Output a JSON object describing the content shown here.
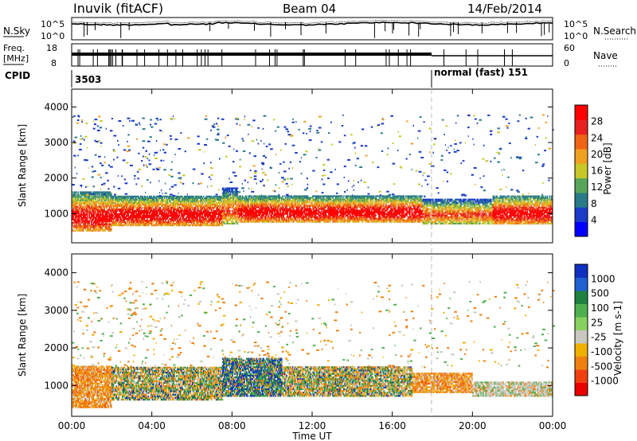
{
  "header": {
    "station": "Inuvik (fitACF)",
    "beam": "Beam 04",
    "date": "14/Feb/2014"
  },
  "top_panels": {
    "nsky_label": "N.Sky",
    "nsky_top": "10^5",
    "nsky_bottom": "10^0",
    "nsearch_label": "N.Search",
    "nsearch_top": "10^5",
    "nsearch_bottom": "10^0",
    "freq_label_1": "Freq.",
    "freq_label_2": "[MHz]",
    "freq_top": "18",
    "freq_bottom": "8",
    "nave_label": "Nave",
    "nave_top": "60",
    "nave_bottom": "0",
    "cpid_label": "CPID",
    "cpid_value_1": "3503",
    "cpid_value_2": "normal (fast) 151"
  },
  "chart_data": [
    {
      "type": "heatmap",
      "title": "Power",
      "ylabel": "Slant Range [km]",
      "xlabel": "",
      "xlim": [
        "00:00",
        "00:00"
      ],
      "ylim": [
        180,
        4500
      ],
      "y_ticks": [
        1000,
        2000,
        3000,
        4000
      ],
      "colorbar": {
        "label": "Power [dB]",
        "ticks": [
          "4",
          "8",
          "12",
          "16",
          "20",
          "24",
          "28"
        ],
        "colors": [
          "#0000ff",
          "#1a3cc8",
          "#2a7a8a",
          "#58a55a",
          "#c8c828",
          "#f0a020",
          "#f06414",
          "#e82020",
          "#ff0000"
        ]
      },
      "bands": [
        {
          "start_h": 0.0,
          "end_h": 2.0,
          "low_km": 500,
          "high_km": 1600,
          "level": "high"
        },
        {
          "start_h": 2.0,
          "end_h": 7.5,
          "low_km": 650,
          "high_km": 1500,
          "level": "high"
        },
        {
          "start_h": 7.5,
          "end_h": 8.3,
          "low_km": 700,
          "high_km": 1700,
          "level": "mid"
        },
        {
          "start_h": 8.3,
          "end_h": 17.5,
          "low_km": 750,
          "high_km": 1500,
          "level": "high"
        },
        {
          "start_h": 17.5,
          "end_h": 21.0,
          "low_km": 700,
          "high_km": 1400,
          "level": "mid"
        },
        {
          "start_h": 21.0,
          "end_h": 24.0,
          "low_km": 700,
          "high_km": 1500,
          "level": "high"
        }
      ]
    },
    {
      "type": "heatmap",
      "title": "Velocity",
      "ylabel": "Slant Range [km]",
      "xlabel": "Time UT",
      "x_ticks": [
        "00:00",
        "04:00",
        "08:00",
        "12:00",
        "16:00",
        "20:00",
        "00:00"
      ],
      "ylim": [
        180,
        4500
      ],
      "y_ticks": [
        1000,
        2000,
        3000,
        4000
      ],
      "colorbar": {
        "label": "Velocity [m s-1]",
        "ticks": [
          "1000",
          "500",
          "100",
          "25",
          "-25",
          "-100",
          "-500",
          "-1000"
        ],
        "colors": [
          "#1030c0",
          "#2060d0",
          "#208040",
          "#50b050",
          "#88d060",
          "#c8c8c0",
          "#f0b000",
          "#f08010",
          "#f04010",
          "#e80000"
        ]
      },
      "bands": [
        {
          "start_h": 0.0,
          "end_h": 2.0,
          "low_km": 400,
          "high_km": 1500,
          "level": "negative"
        },
        {
          "start_h": 2.0,
          "end_h": 7.5,
          "low_km": 600,
          "high_km": 1500,
          "level": "mixed"
        },
        {
          "start_h": 7.5,
          "end_h": 10.5,
          "low_km": 700,
          "high_km": 1700,
          "level": "positive"
        },
        {
          "start_h": 10.5,
          "end_h": 17.0,
          "low_km": 700,
          "high_km": 1500,
          "level": "mixed"
        },
        {
          "start_h": 17.0,
          "end_h": 20.0,
          "low_km": 800,
          "high_km": 1300,
          "level": "negative"
        },
        {
          "start_h": 20.0,
          "end_h": 24.0,
          "low_km": 700,
          "high_km": 1100,
          "level": "ground"
        }
      ]
    }
  ]
}
